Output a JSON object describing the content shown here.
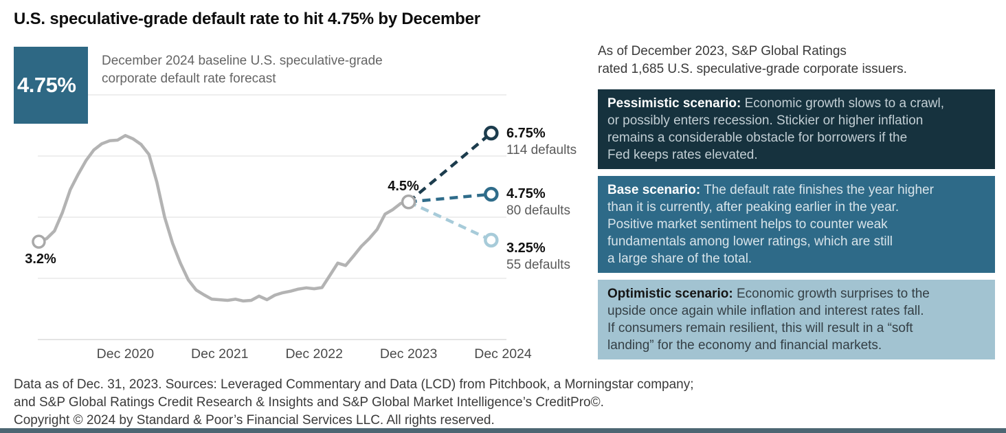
{
  "title": "U.S. speculative-grade default rate to hit 4.75% by December",
  "highlight": {
    "value": "4.75%",
    "caption": "December 2024 baseline U.S. speculative-grade\ncorporate default rate forecast"
  },
  "chart_data": {
    "type": "line",
    "title": "U.S. speculative-grade default rate to hit 4.75% by December",
    "x_unit": "months after Dec 2019",
    "x_ticks": [
      {
        "label": "Dec 2020",
        "month": 12
      },
      {
        "label": "Dec 2021",
        "month": 24
      },
      {
        "label": "Dec 2022",
        "month": 36
      },
      {
        "label": "Dec 2023",
        "month": 48
      },
      {
        "label": "Dec 2024",
        "month": 60
      }
    ],
    "gridlines_pct": [
      2,
      4,
      6,
      8
    ],
    "ylim": [
      0,
      8.8
    ],
    "grid_on": true,
    "historical": {
      "name": "U.S. speculative-grade corporate default rate (%)",
      "color": "#b3b3b3",
      "start_label": "3.2%",
      "end_label": "4.5%",
      "points": [
        [
          1,
          3.2
        ],
        [
          2,
          3.3
        ],
        [
          3,
          3.55
        ],
        [
          4,
          4.15
        ],
        [
          5,
          4.9
        ],
        [
          6,
          5.4
        ],
        [
          7,
          5.85
        ],
        [
          8,
          6.2
        ],
        [
          9,
          6.4
        ],
        [
          10,
          6.5
        ],
        [
          11,
          6.52
        ],
        [
          12,
          6.67
        ],
        [
          13,
          6.56
        ],
        [
          14,
          6.38
        ],
        [
          15,
          6.05
        ],
        [
          16,
          5.15
        ],
        [
          17,
          4.0
        ],
        [
          18,
          3.15
        ],
        [
          19,
          2.5
        ],
        [
          20,
          1.95
        ],
        [
          21,
          1.62
        ],
        [
          22,
          1.46
        ],
        [
          23,
          1.32
        ],
        [
          24,
          1.3
        ],
        [
          25,
          1.28
        ],
        [
          26,
          1.32
        ],
        [
          27,
          1.26
        ],
        [
          28,
          1.28
        ],
        [
          29,
          1.42
        ],
        [
          30,
          1.3
        ],
        [
          31,
          1.45
        ],
        [
          32,
          1.53
        ],
        [
          33,
          1.58
        ],
        [
          34,
          1.65
        ],
        [
          35,
          1.69
        ],
        [
          36,
          1.66
        ],
        [
          37,
          1.7
        ],
        [
          38,
          2.1
        ],
        [
          39,
          2.5
        ],
        [
          40,
          2.42
        ],
        [
          41,
          2.73
        ],
        [
          42,
          3.05
        ],
        [
          43,
          3.3
        ],
        [
          44,
          3.6
        ],
        [
          45,
          4.1
        ],
        [
          46,
          4.25
        ],
        [
          47,
          4.45
        ],
        [
          48,
          4.5
        ]
      ]
    },
    "forecasts": [
      {
        "scenario": "Pessimistic",
        "label": "6.75%",
        "value": 6.75,
        "defaults_label": "114 defaults",
        "color": "#1c3c4d",
        "x": "Dec 2024"
      },
      {
        "scenario": "Base",
        "label": "4.75%",
        "value": 4.75,
        "defaults_label": "80 defaults",
        "color": "#2f6c8a",
        "x": "Dec 2024"
      },
      {
        "scenario": "Optimistic",
        "label": "3.25%",
        "value": 3.25,
        "defaults_label": "55 defaults",
        "color": "#a7cbd9",
        "x": "Dec 2024"
      }
    ]
  },
  "sidebar": {
    "intro": "As of December 2023, S&P Global Ratings\nrated 1,685 U.S. speculative-grade corporate issuers.",
    "scenarios": [
      {
        "id": "pessimistic",
        "heading": "Pessimistic scenario:",
        "body": " Economic growth slows to a crawl,\nor possibly enters recession. Stickier or higher inflation\nremains a considerable obstacle for borrowers if the\nFed keeps rates elevated.",
        "bg": "#16323e",
        "heading_color": "#ffffff",
        "body_color": "#c2ced4"
      },
      {
        "id": "base",
        "heading": "Base scenario:",
        "body": " The default rate finishes the year higher\nthan it is currently, after peaking earlier in the year.\nPositive market sentiment helps to counter weak\nfundamentals among lower ratings, which are still\na large share of the total.",
        "bg": "#2e6a88",
        "heading_color": "#ffffff",
        "body_color": "#d8e4ea"
      },
      {
        "id": "optimistic",
        "heading": "Optimistic scenario:",
        "body": " Economic growth surprises to the\nupside once again while inflation and interest rates fall.\nIf consumers remain resilient, this will result in a “soft\nlanding” for the economy and financial markets.",
        "bg": "#a2c3d1",
        "heading_color": "#151515",
        "body_color": "#343f45"
      }
    ]
  },
  "footer": {
    "lines": [
      "Data as of Dec. 31, 2023. Sources: Leveraged Commentary and Data (LCD) from Pitchbook, a Morningstar company;",
      "and S&P Global Ratings Credit Research & Insights and S&P Global Market Intelligence’s CreditPro©.",
      "Copyright © 2024 by Standard & Poor’s Financial Services LLC. All rights reserved."
    ]
  },
  "colors": {
    "accent_teal": "#2e6884",
    "grid": "#e9e9e9",
    "baseline": "#dcdcdc",
    "axis_text": "#4a4a4a",
    "marker_gray": "#a9a9a9",
    "bottom_bar": "#4d6673"
  }
}
